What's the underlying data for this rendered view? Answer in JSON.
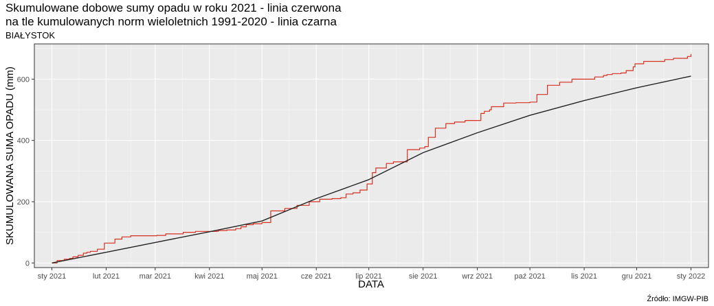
{
  "chart_data": {
    "type": "line",
    "title_lines": [
      "Skumulowane dobowe sumy opadu w roku 2021 - linia czerwona",
      "na tle kumulowanych norm wieloletnich 1991-2020 - linia czarna"
    ],
    "subtitle": "BIAŁYSTOK",
    "xlabel": "DATA",
    "ylabel": "SKUMULOWANA SUMA OPADU (mm)",
    "x_ticks": [
      "sty 2021",
      "lut 2021",
      "mar 2021",
      "kwi 2021",
      "maj 2021",
      "cze 2021",
      "lip 2021",
      "sie 2021",
      "wrz 2021",
      "paź 2021",
      "lis 2021",
      "gru 2021",
      "sty 2022"
    ],
    "x_tick_days": [
      0,
      31,
      59,
      90,
      120,
      151,
      181,
      212,
      243,
      273,
      304,
      334,
      365
    ],
    "y_ticks": [
      0,
      200,
      400,
      600
    ],
    "xlim": [
      -10,
      375
    ],
    "ylim": [
      -15,
      715
    ],
    "grid": true,
    "series": [
      {
        "color": "#d7301f",
        "step": true,
        "x": [
          0,
          3,
          7,
          10,
          12,
          15,
          18,
          20,
          22,
          26,
          30,
          36,
          40,
          45,
          60,
          65,
          75,
          82,
          95,
          100,
          105,
          108,
          111,
          115,
          120,
          125,
          133,
          140,
          147,
          153,
          160,
          165,
          168,
          172,
          176,
          180,
          183,
          185,
          191,
          195,
          203,
          210,
          213,
          215,
          219,
          225,
          230,
          236,
          245,
          247,
          250,
          251,
          258,
          265,
          273,
          277,
          283,
          290,
          297,
          310,
          315,
          317,
          320,
          325,
          328,
          332,
          333,
          338,
          350,
          355,
          363,
          365
        ],
        "y": [
          0,
          8,
          12,
          15,
          20,
          25,
          32,
          35,
          38,
          45,
          65,
          78,
          85,
          89,
          90,
          95,
          100,
          103,
          106,
          108,
          112,
          118,
          125,
          128,
          132,
          170,
          178,
          188,
          200,
          208,
          210,
          213,
          225,
          229,
          238,
          258,
          295,
          310,
          325,
          330,
          370,
          375,
          380,
          410,
          440,
          455,
          460,
          465,
          488,
          495,
          500,
          510,
          522,
          523,
          525,
          550,
          580,
          590,
          600,
          607,
          612,
          615,
          618,
          620,
          628,
          640,
          650,
          658,
          664,
          668,
          674,
          682
        ]
      },
      {
        "color": "#222222",
        "step": false,
        "x": [
          0,
          31,
          59,
          90,
          120,
          151,
          181,
          212,
          243,
          273,
          304,
          334,
          365
        ],
        "y": [
          0,
          35,
          67,
          102,
          137,
          210,
          272,
          360,
          425,
          482,
          530,
          572,
          610
        ]
      }
    ]
  },
  "source": "Źródło: IMGW-PIB"
}
